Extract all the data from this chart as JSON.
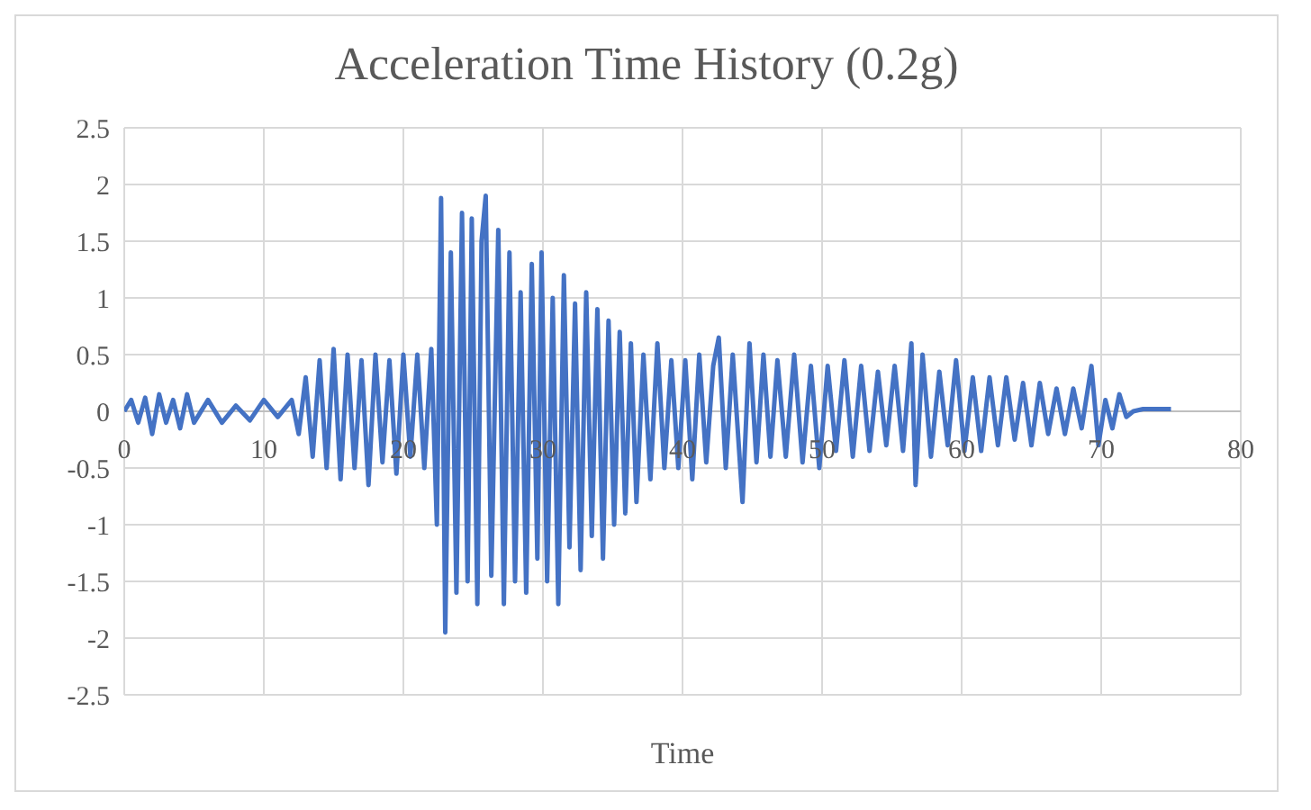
{
  "chart_data": {
    "type": "line",
    "title": "Acceleration Time History (0.2g)",
    "xlabel": "Time",
    "x": [
      0,
      0.5,
      1,
      1.5,
      2,
      2.5,
      3,
      3.5,
      4,
      4.5,
      5,
      6,
      7,
      8,
      9,
      10,
      11,
      12,
      12.5,
      13,
      13.5,
      14,
      14.5,
      15,
      15.5,
      16,
      16.5,
      17,
      17.5,
      18,
      18.5,
      19,
      19.5,
      20,
      20.5,
      21,
      21.5,
      22,
      22.4,
      22.7,
      23,
      23.4,
      23.8,
      24.2,
      24.6,
      24.9,
      25.3,
      25.6,
      25.9,
      26.3,
      26.8,
      27.2,
      27.6,
      28,
      28.4,
      28.8,
      29.2,
      29.6,
      29.9,
      30.3,
      30.7,
      31.1,
      31.5,
      31.9,
      32.3,
      32.7,
      33.1,
      33.5,
      33.9,
      34.3,
      34.7,
      35.1,
      35.5,
      35.9,
      36.3,
      36.7,
      37.2,
      37.7,
      38.2,
      38.7,
      39.2,
      39.7,
      40.2,
      40.7,
      41.2,
      41.7,
      42.2,
      42.6,
      43.1,
      43.6,
      44.3,
      44.8,
      45.3,
      45.8,
      46.3,
      46.8,
      47.4,
      48,
      48.6,
      49.2,
      49.8,
      50.4,
      51,
      51.6,
      52.2,
      52.8,
      53.4,
      54,
      54.6,
      55.2,
      55.8,
      56.4,
      56.7,
      57.2,
      57.8,
      58.4,
      59,
      59.6,
      60.2,
      60.8,
      61.4,
      62,
      62.6,
      63.2,
      63.8,
      64.4,
      65,
      65.6,
      66.2,
      66.8,
      67.4,
      68,
      68.6,
      69.3,
      69.8,
      70.3,
      70.8,
      71.3,
      71.8,
      72.3,
      73,
      74,
      75
    ],
    "series": [
      {
        "color": "#4472c4",
        "values": [
          0,
          0.1,
          -0.1,
          0.12,
          -0.2,
          0.15,
          -0.1,
          0.1,
          -0.15,
          0.15,
          -0.1,
          0.1,
          -0.1,
          0.05,
          -0.08,
          0.1,
          -0.05,
          0.1,
          -0.2,
          0.3,
          -0.4,
          0.45,
          -0.5,
          0.55,
          -0.6,
          0.5,
          -0.5,
          0.45,
          -0.65,
          0.5,
          -0.45,
          0.45,
          -0.55,
          0.5,
          -0.4,
          0.5,
          -0.5,
          0.55,
          -1.0,
          1.88,
          -1.95,
          1.4,
          -1.6,
          1.75,
          -1.5,
          1.7,
          -1.7,
          1.5,
          1.9,
          -1.45,
          1.6,
          -1.7,
          1.4,
          -1.5,
          1.05,
          -1.6,
          1.3,
          -1.3,
          1.4,
          -1.5,
          1.0,
          -1.7,
          1.2,
          -1.2,
          0.95,
          -1.4,
          1.05,
          -1.1,
          0.9,
          -1.3,
          0.8,
          -1.0,
          0.7,
          -0.9,
          0.6,
          -0.8,
          0.5,
          -0.6,
          0.6,
          -0.5,
          0.45,
          -0.5,
          0.45,
          -0.6,
          0.5,
          -0.45,
          0.4,
          0.65,
          -0.5,
          0.5,
          -0.8,
          0.6,
          -0.45,
          0.5,
          -0.4,
          0.45,
          -0.4,
          0.5,
          -0.45,
          0.4,
          -0.5,
          0.4,
          -0.35,
          0.45,
          -0.4,
          0.4,
          -0.35,
          0.35,
          -0.3,
          0.4,
          -0.35,
          0.6,
          -0.65,
          0.5,
          -0.4,
          0.35,
          -0.3,
          0.45,
          -0.35,
          0.3,
          -0.35,
          0.3,
          -0.3,
          0.3,
          -0.25,
          0.25,
          -0.3,
          0.25,
          -0.2,
          0.2,
          -0.2,
          0.2,
          -0.15,
          0.4,
          -0.3,
          0.1,
          -0.15,
          0.15,
          -0.05,
          0,
          0.02,
          0.02,
          0.02
        ]
      }
    ],
    "xlim": [
      0,
      80
    ],
    "xticks": [
      0,
      10,
      20,
      30,
      40,
      50,
      60,
      70,
      80
    ],
    "ylim": [
      -2.5,
      2.5
    ],
    "yticks": [
      -2.5,
      -2,
      -1.5,
      -1,
      -0.5,
      0,
      0.5,
      1,
      1.5,
      2,
      2.5
    ],
    "grid": true,
    "marker": "none",
    "line_style": "solid"
  }
}
